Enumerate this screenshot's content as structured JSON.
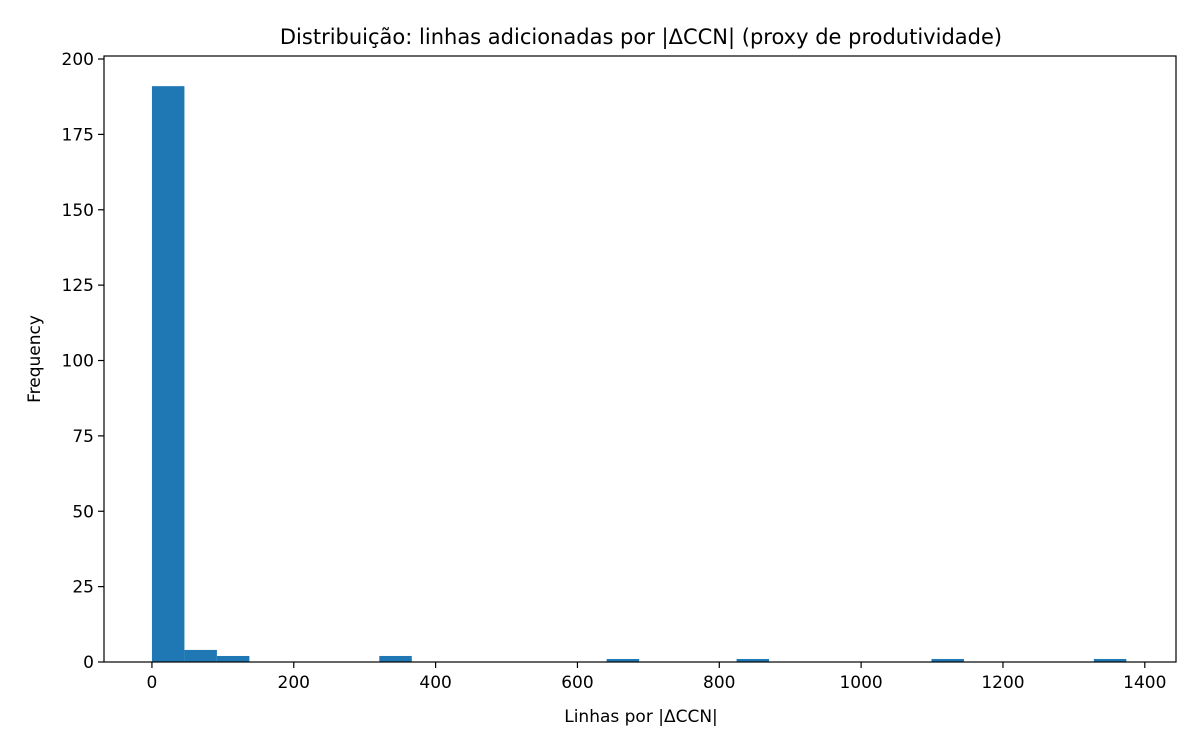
{
  "chart_data": {
    "type": "bar",
    "title": "Distribuição: linhas adicionadas por |ΔCCN| (proxy de produtividade)",
    "xlabel": "Linhas por |ΔCCN|",
    "ylabel": "Frequency",
    "xlim": [
      -67.6,
      1444.0
    ],
    "ylim": [
      0,
      201
    ],
    "xticks": [
      0,
      200,
      400,
      600,
      800,
      1000,
      1200,
      1400
    ],
    "yticks": [
      0,
      25,
      50,
      75,
      100,
      125,
      150,
      175,
      200
    ],
    "grid": false,
    "color": "#1f77b4",
    "bin_width": 45.8,
    "bins": [
      {
        "x0": 0.0,
        "x1": 45.8,
        "count": 191
      },
      {
        "x0": 45.8,
        "x1": 91.6,
        "count": 4
      },
      {
        "x0": 91.6,
        "x1": 137.4,
        "count": 2
      },
      {
        "x0": 320.6,
        "x1": 366.4,
        "count": 2
      },
      {
        "x0": 641.2,
        "x1": 687.0,
        "count": 1
      },
      {
        "x0": 824.4,
        "x1": 870.2,
        "count": 1
      },
      {
        "x0": 1099.2,
        "x1": 1145.0,
        "count": 1
      },
      {
        "x0": 1328.2,
        "x1": 1374.0,
        "count": 1
      }
    ]
  }
}
